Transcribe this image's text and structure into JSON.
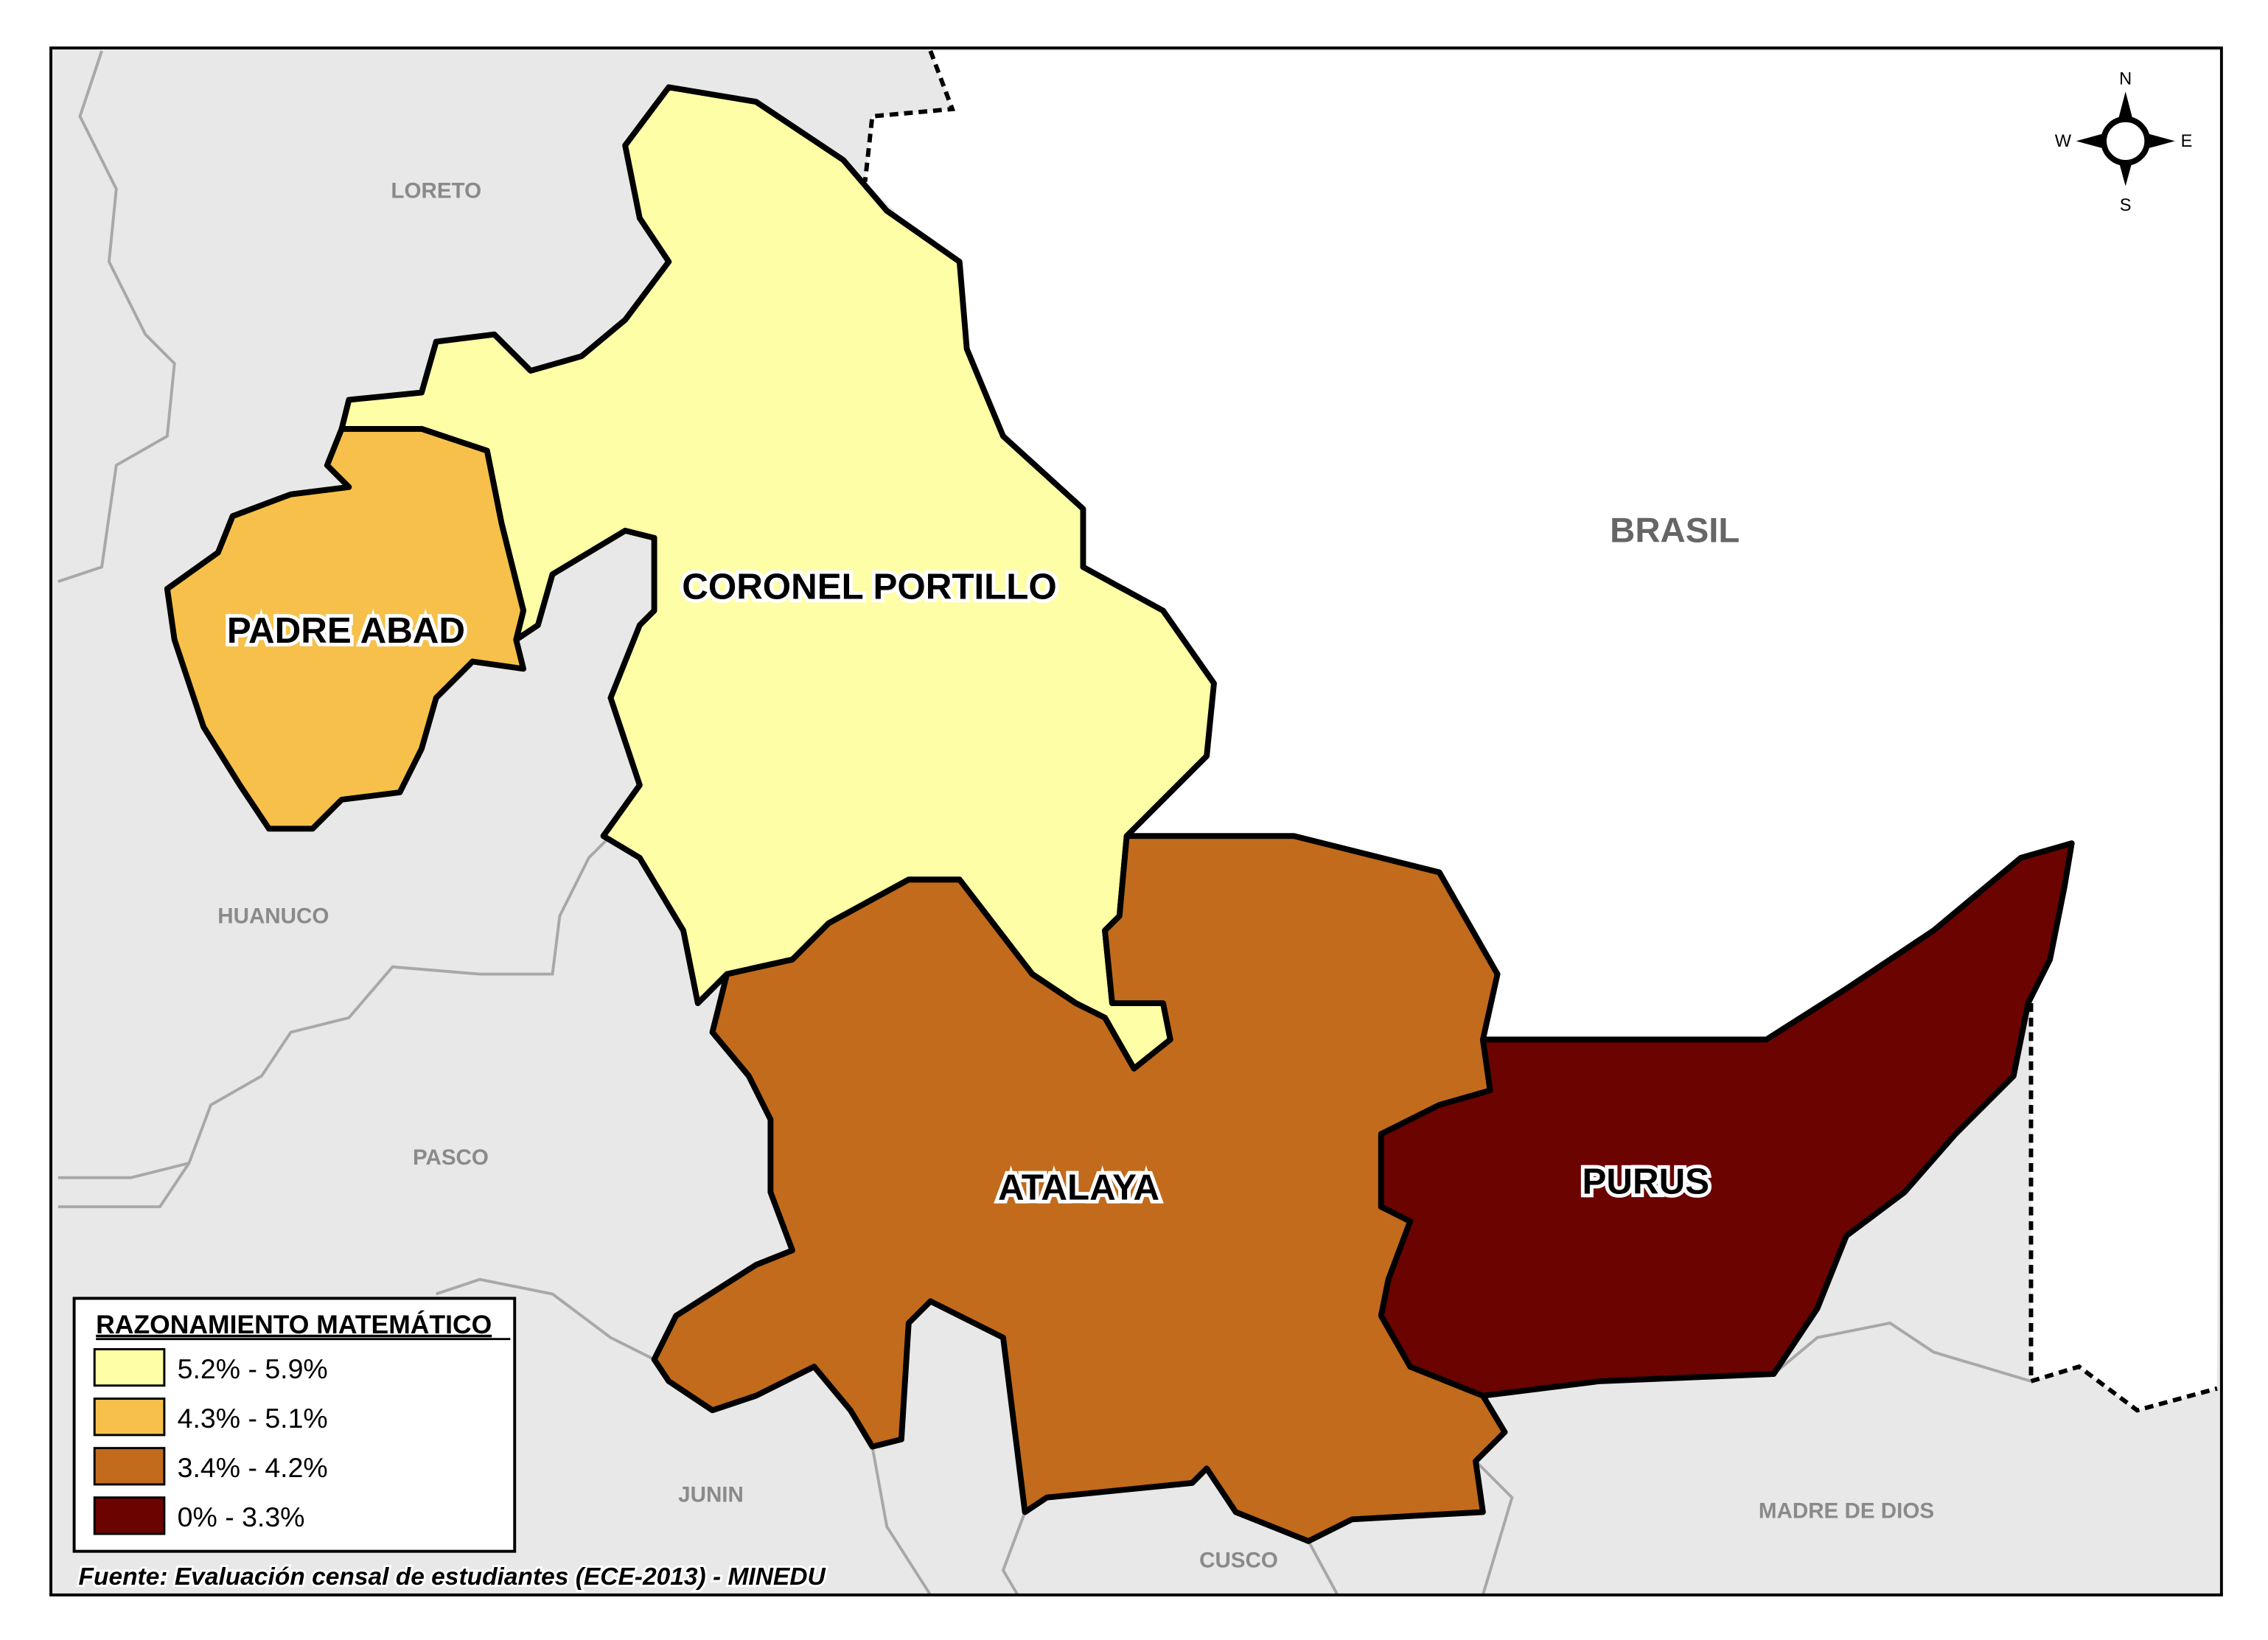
{
  "map": {
    "provinces": [
      {
        "name": "CORONEL PORTILLO",
        "class": "5.2% - 5.9%",
        "color": "#fefea6"
      },
      {
        "name": "PADRE ABAD",
        "class": "4.3% - 5.1%",
        "color": "#f6c04b"
      },
      {
        "name": "ATALAYA",
        "class": "3.4% - 4.2%",
        "color": "#c26b1c"
      },
      {
        "name": "PURUS",
        "class": "0% - 3.3%",
        "color": "#6b0301"
      }
    ],
    "departments": [
      "LORETO",
      "HUANUCO",
      "PASCO",
      "JUNIN",
      "CUSCO",
      "MADRE DE DIOS"
    ],
    "country": "BRASIL",
    "neighbor_fill": "#e8e8e8",
    "foreign_fill": "#ffffff"
  },
  "compass": {
    "n": "N",
    "s": "S",
    "e": "E",
    "w": "W"
  },
  "legend": {
    "title": "RAZONAMIENTO MATEMÁTICO",
    "items": [
      {
        "label": "5.2% - 5.9%",
        "color": "#fefea6"
      },
      {
        "label": "4.3% - 5.1%",
        "color": "#f6c04b"
      },
      {
        "label": "3.4% - 4.2%",
        "color": "#c26b1c"
      },
      {
        "label": "0% - 3.3%",
        "color": "#6b0301"
      }
    ]
  },
  "source": "Fuente: Evaluación censal de estudiantes (ECE-2013) - MINEDU"
}
